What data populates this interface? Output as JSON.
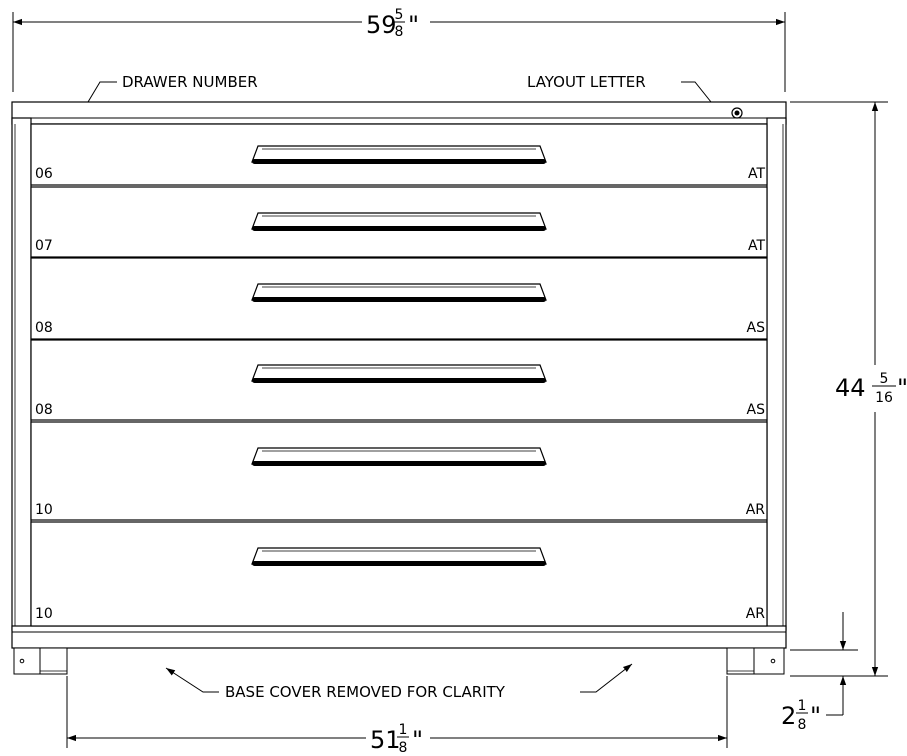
{
  "dimensions": {
    "overall_width": {
      "whole": "59",
      "num": "5",
      "den": "8",
      "unit": "\""
    },
    "overall_height": {
      "whole": "44",
      "num": "5",
      "den": "16",
      "unit": "\""
    },
    "base_width": {
      "whole": "51",
      "num": "1",
      "den": "8",
      "unit": "\""
    },
    "base_height": {
      "whole": "2",
      "num": "1",
      "den": "8",
      "unit": "\""
    }
  },
  "callouts": {
    "drawer_number": "DRAWER NUMBER",
    "layout_letter": "LAYOUT LETTER",
    "base_cover": "BASE COVER REMOVED FOR CLARITY"
  },
  "drawers": [
    {
      "number": "06",
      "letter": "AT"
    },
    {
      "number": "07",
      "letter": "AT"
    },
    {
      "number": "08",
      "letter": "AS"
    },
    {
      "number": "08",
      "letter": "AS"
    },
    {
      "number": "10",
      "letter": "AR"
    },
    {
      "number": "10",
      "letter": "AR"
    }
  ]
}
